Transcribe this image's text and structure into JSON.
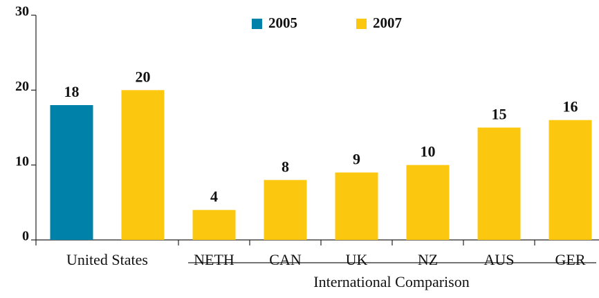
{
  "chart_data": {
    "type": "bar",
    "categories": [
      "United States",
      "NETH",
      "CAN",
      "UK",
      "NZ",
      "AUS",
      "GER"
    ],
    "series": [
      {
        "name": "2005",
        "color": "#0081aa",
        "values": [
          18,
          null,
          null,
          null,
          null,
          null,
          null
        ]
      },
      {
        "name": "2007",
        "color": "#fcc70f",
        "values": [
          20,
          4,
          8,
          9,
          10,
          15,
          16
        ]
      }
    ],
    "x_group_label": "International Comparison",
    "ylim": [
      0,
      30
    ],
    "yticks": [
      0,
      10,
      20,
      30
    ],
    "legend": "top"
  }
}
